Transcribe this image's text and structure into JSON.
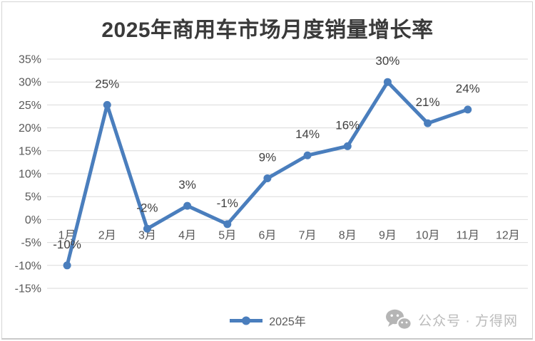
{
  "title": "2025年商用车市场月度销量增长率",
  "chart_data": {
    "type": "line",
    "title": "2025年商用车市场月度销量增长率",
    "categories": [
      "1月",
      "2月",
      "3月",
      "4月",
      "5月",
      "6月",
      "7月",
      "8月",
      "9月",
      "10月",
      "11月",
      "12月"
    ],
    "series": [
      {
        "name": "2025年",
        "values": [
          -10,
          25,
          -2,
          3,
          -1,
          9,
          14,
          16,
          30,
          21,
          24,
          null
        ],
        "labels": [
          "-10%",
          "25%",
          "-2%",
          "3%",
          "-1%",
          "9%",
          "14%",
          "16%",
          "30%",
          "21%",
          "24%"
        ]
      }
    ],
    "xlabel": "",
    "ylabel": "",
    "ylim": [
      -15,
      35
    ],
    "ytick_step": 5,
    "ytick_suffix": "%",
    "grid": true,
    "legend_position": "bottom"
  },
  "colors": {
    "line": "#4a7ebd",
    "marker": "#4a7ebd",
    "grid": "#dadada",
    "axis_tick": "#595959",
    "category_label": "#595959",
    "data_label": "#3f3f3f",
    "title": "#3a3a3a",
    "watermark": "#b5b5b5",
    "frame_border": "#d4d4d4"
  },
  "legend": {
    "label": "2025年"
  },
  "watermark": {
    "icon": "wechat-icon",
    "text": "公众号 · 方得网"
  }
}
